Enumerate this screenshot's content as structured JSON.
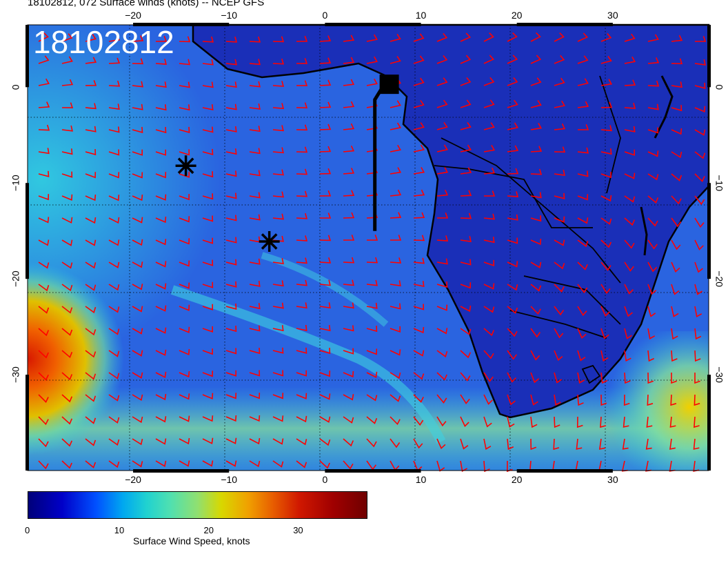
{
  "map": {
    "title": "18102812, 072 Surface winds (knots) -- NCEP GFS",
    "date_stamp": "18102812",
    "lon_ticks": [
      "−20",
      "−10",
      "0",
      "10",
      "20",
      "30"
    ],
    "lat_ticks": [
      "0",
      "−10",
      "−20",
      "−30"
    ],
    "lon_range": [
      -31,
      40
    ],
    "lat_range": [
      -40,
      6.5
    ],
    "colors": {
      "wind_barbs": "#ff0000",
      "coastline": "#000000",
      "ocean_low": "#1e46d6",
      "ocean_high": "#e04000"
    },
    "markers": [
      {
        "kind": "asterisk",
        "lon": -14.5,
        "lat": -8.2
      },
      {
        "kind": "asterisk",
        "lon": -5.8,
        "lat": -16.1
      },
      {
        "kind": "square",
        "lon": 6.7,
        "lat": 0.3
      }
    ],
    "track_line": [
      [
        6.0,
        0.0
      ],
      [
        5.2,
        -1.3
      ],
      [
        5.2,
        -15.0
      ]
    ]
  },
  "colorbar": {
    "label": "Surface Wind Speed, knots",
    "ticks": [
      "0",
      "10",
      "20",
      "30"
    ],
    "tick_values": [
      0,
      10,
      20,
      30
    ],
    "range": [
      0,
      38
    ]
  }
}
